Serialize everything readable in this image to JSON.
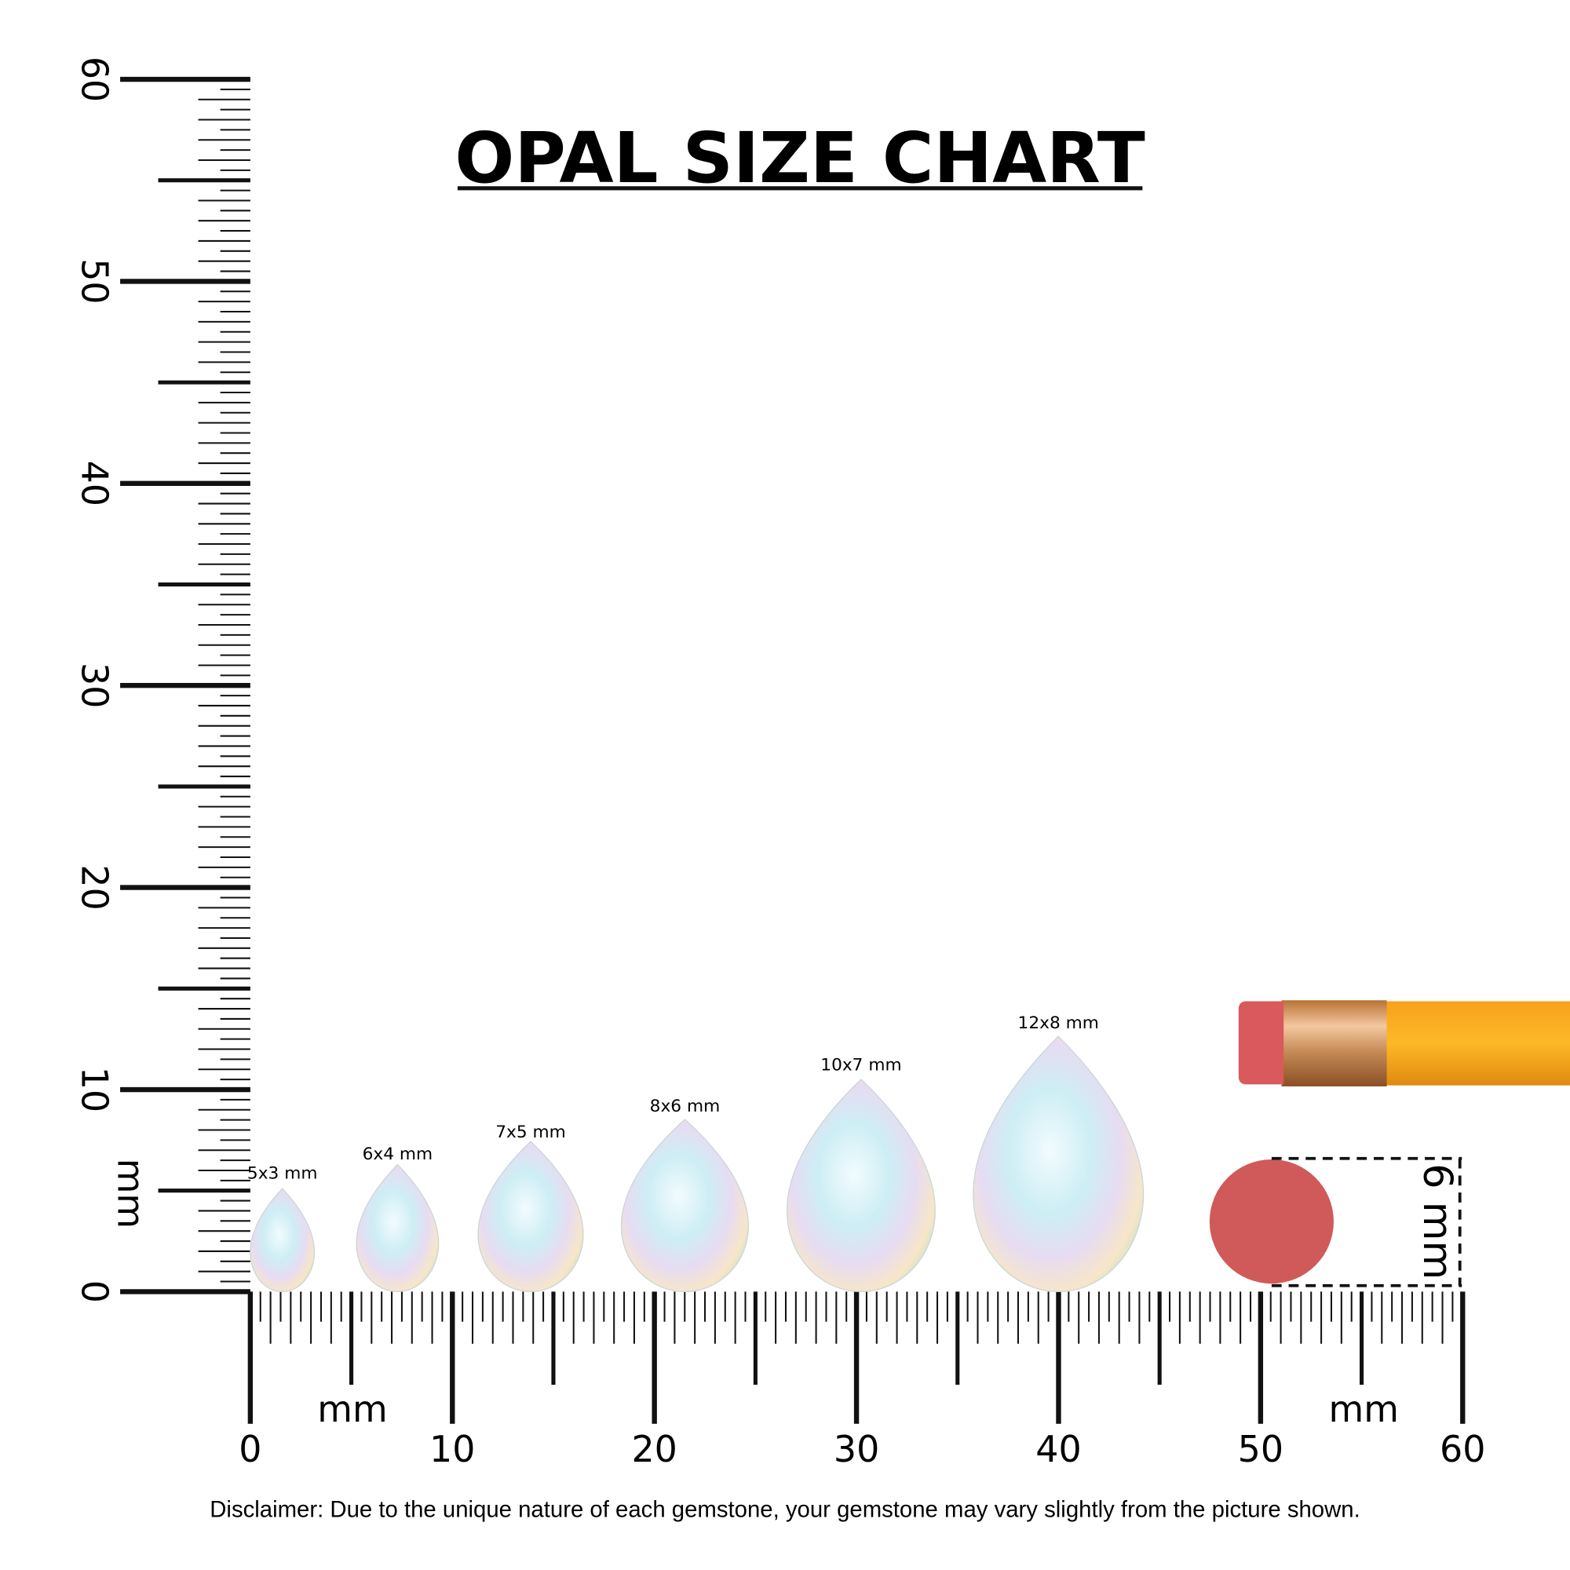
{
  "title": "OPAL SIZE CHART",
  "vertical_ruler": {
    "labels": [
      0,
      10,
      20,
      30,
      40,
      50,
      60
    ],
    "unit": "mm"
  },
  "horizontal_ruler": {
    "labels": [
      0,
      10,
      20,
      30,
      40,
      50,
      60
    ],
    "units": [
      "mm",
      "mm"
    ]
  },
  "stones": [
    {
      "label": "5x3 mm"
    },
    {
      "label": "6x4 mm"
    },
    {
      "label": "7x5 mm"
    },
    {
      "label": "8x6 mm"
    },
    {
      "label": "10x7 mm"
    },
    {
      "label": "12x8 mm"
    }
  ],
  "reference": {
    "label": "6 mm"
  },
  "disclaimer": "Disclaimer: Due to the unique nature of each gemstone, your gemstone may vary slightly from the picture shown."
}
